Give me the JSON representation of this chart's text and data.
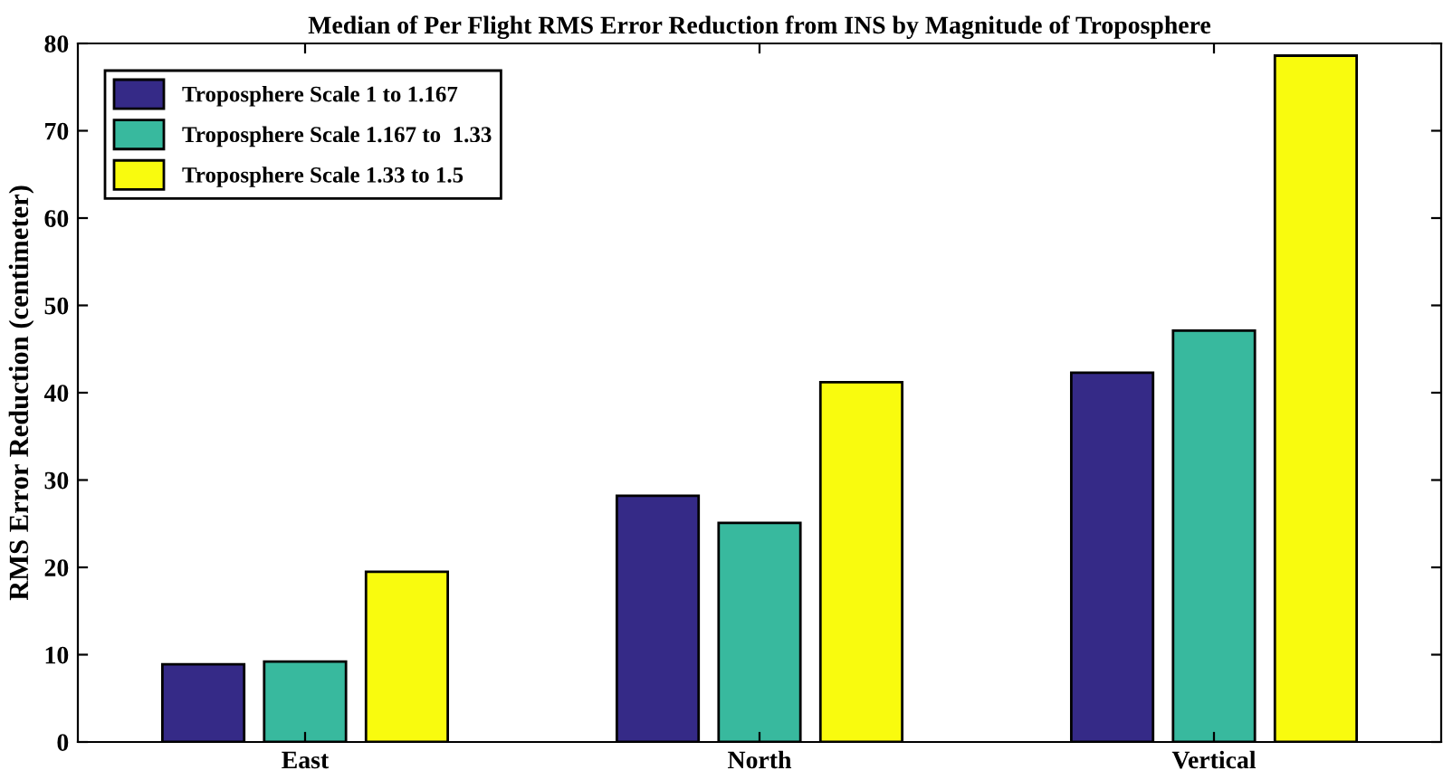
{
  "chart_data": {
    "type": "bar",
    "title": "Median of Per Flight RMS Error Reduction from INS by Magnitude of Troposphere",
    "ylabel": "RMS Error Reduction (centimeter)",
    "categories": [
      "East",
      "North",
      "Vertical"
    ],
    "series": [
      {
        "name": "Troposphere Scale 1 to 1.167",
        "color": "#352a87",
        "values": [
          8.9,
          28.2,
          42.3
        ]
      },
      {
        "name": "Troposphere Scale 1.167 to  1.33",
        "color": "#38b99e",
        "values": [
          9.2,
          25.1,
          47.1
        ]
      },
      {
        "name": "Troposphere Scale 1.33 to 1.5",
        "color": "#f9fb0e",
        "values": [
          19.5,
          41.2,
          78.6
        ]
      }
    ],
    "ylim": [
      0,
      80
    ],
    "yticks": [
      0,
      10,
      20,
      30,
      40,
      50,
      60,
      70,
      80
    ],
    "grid": false,
    "legend": "top left"
  }
}
